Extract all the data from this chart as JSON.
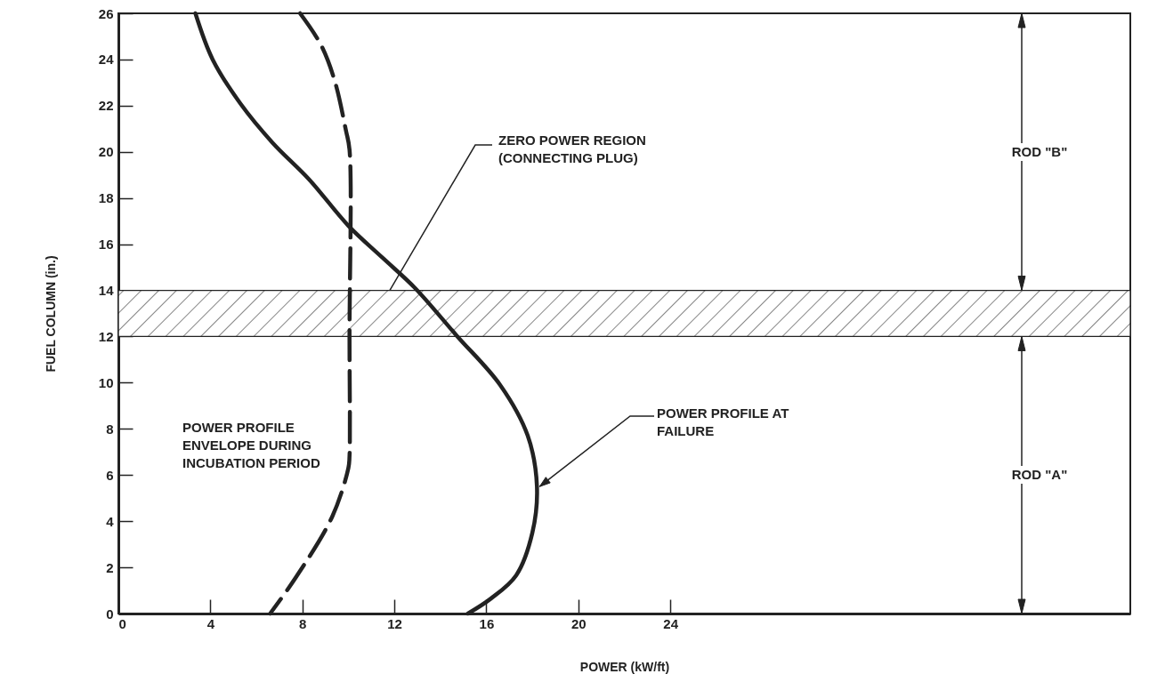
{
  "chart_data": {
    "type": "line",
    "xlabel": "POWER (kW/ft)",
    "ylabel": "FUEL COLUMN (in.)",
    "xlim": [
      0,
      44
    ],
    "xticks": [
      0,
      4,
      8,
      12,
      16,
      20,
      24
    ],
    "ylim": [
      0,
      26
    ],
    "yticks": [
      0,
      2,
      4,
      6,
      8,
      10,
      12,
      14,
      16,
      18,
      20,
      22,
      24,
      26
    ],
    "grid": false,
    "series": [
      {
        "name": "POWER PROFILE ENVELOPE DURING INCUBATION PERIOD",
        "color": "#222222",
        "line_style": "dashed",
        "x": [
          7.9,
          8.8,
          9.4,
          9.9,
          10.05,
          10.05,
          10.05,
          10.0,
          9.3,
          7.7,
          6.6
        ],
        "values": [
          26,
          24.65,
          23.1,
          20.9,
          20.1,
          12,
          6.8,
          6.3,
          4.2,
          1.54,
          0
        ]
      },
      {
        "name": "POWER PROFILE AT FAILURE",
        "color": "#222222",
        "line_style": "solid",
        "x": [
          3.35,
          4.1,
          5.3,
          6.7,
          8.3,
          10.0,
          11.5,
          12.9,
          14.7,
          16.6,
          17.8,
          18.2,
          18.0,
          17.3,
          16.2,
          15.2
        ],
        "values": [
          26,
          24.0,
          22.1,
          20.4,
          18.8,
          16.8,
          15.4,
          14.1,
          12.05,
          9.9,
          7.7,
          5.5,
          3.5,
          1.66,
          0.65,
          0
        ]
      }
    ],
    "bands": [
      {
        "axis": "y",
        "from": 12,
        "to": 14,
        "label": "ZERO POWER REGION (CONNECTING PLUG)"
      }
    ],
    "annotations": [
      "ROD \"B\"",
      "ROD \"A\""
    ]
  }
}
